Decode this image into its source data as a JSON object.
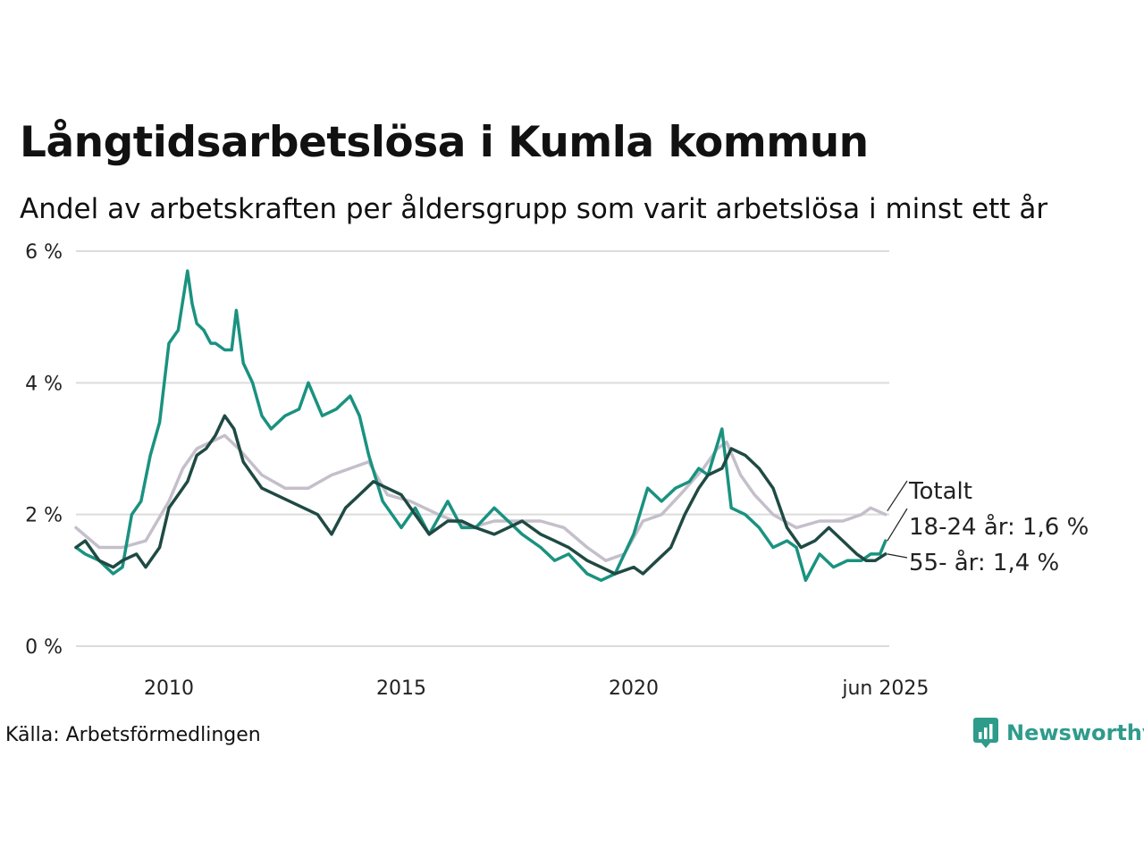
{
  "title": "Långtidsarbetslösa i Kumla kommun",
  "subtitle": "Andel av arbetskraften per åldersgrupp som varit arbetslösa i minst ett år",
  "source": "Källa: Arbetsförmedlingen",
  "brand": {
    "name": "Newsworthy",
    "icon": "newsworthy-logo-icon",
    "color": "#2e9b8b"
  },
  "chart_data": {
    "type": "line",
    "title": "Långtidsarbetslösa i Kumla kommun",
    "subtitle": "Andel av arbetskraften per åldersgrupp som varit arbetslösa i minst ett år",
    "xlabel": "",
    "ylabel": "",
    "xlim": [
      2008.0,
      2025.5
    ],
    "ylim": [
      0,
      6
    ],
    "y_ticks": [
      0,
      2,
      4,
      6
    ],
    "y_tick_labels": [
      "0 %",
      "2 %",
      "4 %",
      "6 %"
    ],
    "x_ticks": [
      2010,
      2015,
      2020,
      2025.42
    ],
    "x_tick_labels": [
      "2010",
      "2015",
      "2020",
      "jun 2025"
    ],
    "grid": "horizontal",
    "legend": "direct labels at right end of lines",
    "series": [
      {
        "name": "Totalt",
        "end_label": "Totalt",
        "color": "#c4bfca",
        "x": [
          2008.0,
          2008.5,
          2009.0,
          2009.5,
          2010.0,
          2010.3,
          2010.6,
          2010.9,
          2011.2,
          2011.5,
          2012.0,
          2012.5,
          2013.0,
          2013.5,
          2013.9,
          2014.3,
          2014.7,
          2015.2,
          2015.8,
          2016.5,
          2017.0,
          2017.5,
          2018.0,
          2018.5,
          2019.0,
          2019.4,
          2019.8,
          2020.2,
          2020.6,
          2021.0,
          2021.5,
          2021.8,
          2022.0,
          2022.3,
          2022.6,
          2023.0,
          2023.5,
          2024.0,
          2024.5,
          2024.9,
          2025.1,
          2025.42
        ],
        "y": [
          1.8,
          1.5,
          1.5,
          1.6,
          2.2,
          2.7,
          3.0,
          3.1,
          3.2,
          3.0,
          2.6,
          2.4,
          2.4,
          2.6,
          2.7,
          2.8,
          2.3,
          2.2,
          2.0,
          1.8,
          1.9,
          1.9,
          1.9,
          1.8,
          1.5,
          1.3,
          1.4,
          1.9,
          2.0,
          2.3,
          2.7,
          3.0,
          3.1,
          2.6,
          2.3,
          2.0,
          1.8,
          1.9,
          1.9,
          2.0,
          2.1,
          2.0
        ]
      },
      {
        "name": "18-24 år",
        "end_label": "18-24 år: 1,6 %",
        "color": "#1a9280",
        "x": [
          2008.0,
          2008.2,
          2008.5,
          2008.8,
          2009.0,
          2009.2,
          2009.4,
          2009.6,
          2009.8,
          2010.0,
          2010.2,
          2010.4,
          2010.5,
          2010.6,
          2010.75,
          2010.9,
          2011.0,
          2011.2,
          2011.35,
          2011.45,
          2011.6,
          2011.8,
          2012.0,
          2012.2,
          2012.5,
          2012.8,
          2013.0,
          2013.3,
          2013.6,
          2013.9,
          2014.1,
          2014.3,
          2014.6,
          2015.0,
          2015.3,
          2015.6,
          2016.0,
          2016.3,
          2016.6,
          2017.0,
          2017.3,
          2017.6,
          2018.0,
          2018.3,
          2018.6,
          2019.0,
          2019.3,
          2019.6,
          2020.0,
          2020.3,
          2020.6,
          2020.9,
          2021.2,
          2021.4,
          2021.6,
          2021.9,
          2022.1,
          2022.4,
          2022.7,
          2023.0,
          2023.3,
          2023.5,
          2023.7,
          2024.0,
          2024.3,
          2024.6,
          2024.9,
          2025.1,
          2025.3,
          2025.42
        ],
        "y": [
          1.5,
          1.4,
          1.3,
          1.1,
          1.2,
          2.0,
          2.2,
          2.9,
          3.4,
          4.6,
          4.8,
          5.7,
          5.2,
          4.9,
          4.8,
          4.6,
          4.6,
          4.5,
          4.5,
          5.1,
          4.3,
          4.0,
          3.5,
          3.3,
          3.5,
          3.6,
          4.0,
          3.5,
          3.6,
          3.8,
          3.5,
          2.9,
          2.2,
          1.8,
          2.1,
          1.7,
          2.2,
          1.8,
          1.8,
          2.1,
          1.9,
          1.7,
          1.5,
          1.3,
          1.4,
          1.1,
          1.0,
          1.1,
          1.7,
          2.4,
          2.2,
          2.4,
          2.5,
          2.7,
          2.6,
          3.3,
          2.1,
          2.0,
          1.8,
          1.5,
          1.6,
          1.5,
          1.0,
          1.4,
          1.2,
          1.3,
          1.3,
          1.4,
          1.4,
          1.6
        ]
      },
      {
        "name": "55- år",
        "end_label": "55- år: 1,4 %",
        "color": "#1f4a43",
        "x": [
          2008.0,
          2008.2,
          2008.5,
          2008.8,
          2009.0,
          2009.3,
          2009.5,
          2009.8,
          2010.0,
          2010.2,
          2010.4,
          2010.6,
          2010.8,
          2011.0,
          2011.2,
          2011.4,
          2011.6,
          2011.8,
          2012.0,
          2012.3,
          2012.6,
          2012.9,
          2013.2,
          2013.5,
          2013.8,
          2014.1,
          2014.4,
          2014.7,
          2015.0,
          2015.3,
          2015.6,
          2016.0,
          2016.3,
          2016.6,
          2017.0,
          2017.3,
          2017.6,
          2018.0,
          2018.3,
          2018.6,
          2019.0,
          2019.3,
          2019.6,
          2020.0,
          2020.2,
          2020.5,
          2020.8,
          2021.1,
          2021.4,
          2021.6,
          2021.9,
          2022.1,
          2022.4,
          2022.7,
          2023.0,
          2023.3,
          2023.6,
          2023.9,
          2024.2,
          2024.5,
          2024.8,
          2025.0,
          2025.2,
          2025.42
        ],
        "y": [
          1.5,
          1.6,
          1.3,
          1.2,
          1.3,
          1.4,
          1.2,
          1.5,
          2.1,
          2.3,
          2.5,
          2.9,
          3.0,
          3.2,
          3.5,
          3.3,
          2.8,
          2.6,
          2.4,
          2.3,
          2.2,
          2.1,
          2.0,
          1.7,
          2.1,
          2.3,
          2.5,
          2.4,
          2.3,
          2.0,
          1.7,
          1.9,
          1.9,
          1.8,
          1.7,
          1.8,
          1.9,
          1.7,
          1.6,
          1.5,
          1.3,
          1.2,
          1.1,
          1.2,
          1.1,
          1.3,
          1.5,
          2.0,
          2.4,
          2.6,
          2.7,
          3.0,
          2.9,
          2.7,
          2.4,
          1.8,
          1.5,
          1.6,
          1.8,
          1.6,
          1.4,
          1.3,
          1.3,
          1.4
        ]
      }
    ]
  }
}
